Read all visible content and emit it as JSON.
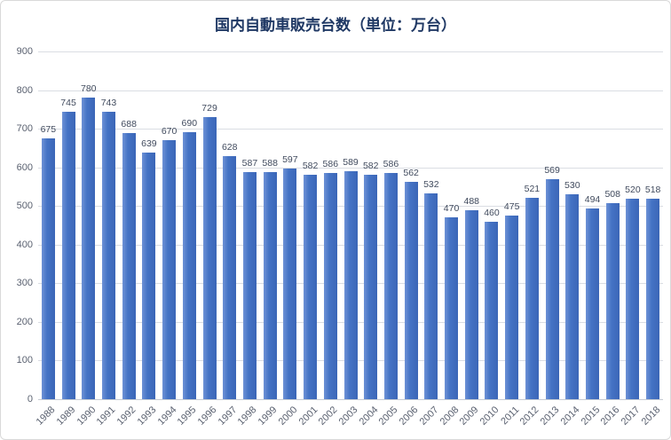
{
  "chart": {
    "title": "国内自動車販売台数（単位：万台）"
  },
  "chart_data": {
    "type": "bar",
    "title": "国内自動車販売台数（単位：万台）",
    "categories": [
      "1988",
      "1989",
      "1990",
      "1991",
      "1992",
      "1993",
      "1994",
      "1995",
      "1996",
      "1997",
      "1998",
      "1999",
      "2000",
      "2001",
      "2002",
      "2003",
      "2004",
      "2005",
      "2006",
      "2007",
      "2008",
      "2009",
      "2010",
      "2011",
      "2012",
      "2013",
      "2014",
      "2015",
      "2016",
      "2017",
      "2018"
    ],
    "values": [
      675,
      745,
      780,
      743,
      688,
      639,
      670,
      690,
      729,
      628,
      587,
      588,
      597,
      582,
      586,
      589,
      582,
      586,
      562,
      532,
      470,
      488,
      460,
      475,
      521,
      569,
      530,
      494,
      508,
      520,
      518
    ],
    "xlabel": "",
    "ylabel": "",
    "ylim": [
      0,
      900
    ],
    "ytick_labels": [
      "900",
      "800",
      "700",
      "600",
      "500",
      "400",
      "300",
      "200",
      "100",
      "0"
    ],
    "grid": "horizontal",
    "legend": "none",
    "data_labels": true,
    "x_label_rotation": -45,
    "colors": {
      "bar_gradient_left": "#6E92D6",
      "bar_gradient_mid": "#4573C5",
      "bar_gradient_right": "#3B66B7",
      "title_text": "#1F3864",
      "axis_tick_text": "#5A6170",
      "data_label_text": "#414B5E",
      "gridline": "#DADDE3",
      "axis_line": "#C6CBD3",
      "background": "#FFFFFF",
      "chart_border": "#D9D9D9"
    }
  }
}
